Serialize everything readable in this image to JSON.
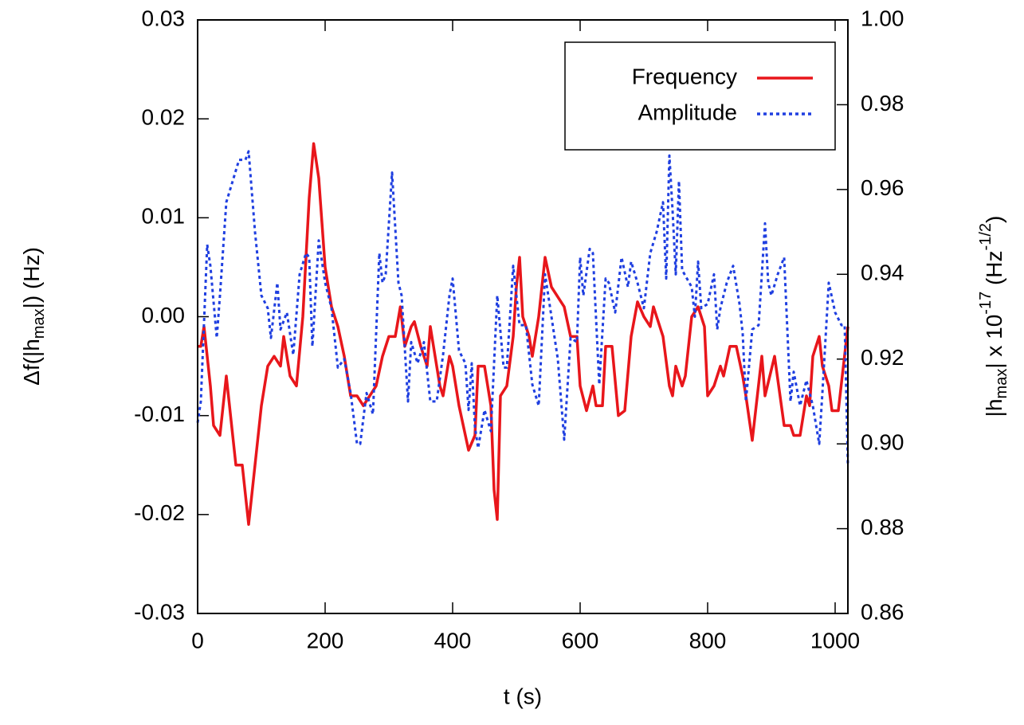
{
  "chart_data": {
    "type": "line",
    "xlabel": "t (s)",
    "ylabel": [
      "Δf(|h",
      "max",
      "|) (Hz)"
    ],
    "y2label": [
      "|h",
      "max",
      "| x 10",
      "-17",
      " (Hz",
      "-1/2",
      ")"
    ],
    "xlim": [
      0,
      1020
    ],
    "xticks": [
      0,
      200,
      400,
      600,
      800,
      1000
    ],
    "ylim": [
      -0.03,
      0.03
    ],
    "yticks": [
      -0.03,
      -0.02,
      -0.01,
      {
        "value": 0,
        "label": "0.00"
      },
      0.01,
      0.02,
      0.03
    ],
    "y2lim": [
      0.86,
      1.0
    ],
    "y2ticks": [
      0.86,
      0.88,
      {
        "value": 0.9,
        "label": "0.90"
      },
      0.92,
      0.94,
      0.96,
      0.98,
      {
        "value": 1.0,
        "label": "1.00"
      }
    ],
    "legend": "upper right",
    "series": [
      {
        "name": "Frequency",
        "color": "#e8161b",
        "linestyle": "solid",
        "x": [
          0,
          5,
          10,
          20,
          25,
          35,
          45,
          55,
          60,
          70,
          80,
          90,
          100,
          110,
          120,
          130,
          135,
          145,
          155,
          165,
          175,
          182,
          190,
          200,
          210,
          220,
          230,
          240,
          250,
          260,
          270,
          280,
          290,
          300,
          310,
          318,
          325,
          335,
          340,
          350,
          360,
          365,
          370,
          380,
          385,
          395,
          400,
          410,
          420,
          425,
          435,
          440,
          450,
          460,
          465,
          470,
          475,
          485,
          495,
          500,
          505,
          510,
          520,
          525,
          535,
          545,
          555,
          565,
          575,
          585,
          595,
          600,
          610,
          620,
          625,
          635,
          640,
          650,
          660,
          670,
          680,
          690,
          700,
          710,
          715,
          725,
          730,
          740,
          745,
          750,
          760,
          765,
          775,
          785,
          795,
          800,
          810,
          820,
          825,
          835,
          845,
          855,
          860,
          870,
          885,
          890,
          905,
          920,
          930,
          935,
          945,
          955,
          960,
          965,
          975,
          980,
          990,
          995,
          1005,
          1020
        ],
        "values": [
          -0.003,
          -0.003,
          -0.001,
          -0.007,
          -0.011,
          -0.012,
          -0.006,
          -0.012,
          -0.015,
          -0.015,
          -0.021,
          -0.015,
          -0.009,
          -0.005,
          -0.004,
          -0.005,
          -0.002,
          -0.006,
          -0.007,
          0.0,
          0.012,
          0.0175,
          0.014,
          0.005,
          0.001,
          -0.001,
          -0.004,
          -0.008,
          -0.008,
          -0.009,
          -0.008,
          -0.007,
          -0.004,
          -0.002,
          -0.002,
          0.001,
          -0.003,
          -0.001,
          -0.0005,
          -0.003,
          -0.005,
          -0.001,
          -0.003,
          -0.007,
          -0.008,
          -0.004,
          -0.005,
          -0.009,
          -0.012,
          -0.0135,
          -0.012,
          -0.005,
          -0.005,
          -0.009,
          -0.0175,
          -0.0205,
          -0.008,
          -0.007,
          -0.002,
          0.003,
          0.006,
          0.0,
          -0.002,
          -0.004,
          0.0,
          0.006,
          0.003,
          0.002,
          0.001,
          -0.002,
          -0.002,
          -0.007,
          -0.0095,
          -0.007,
          -0.009,
          -0.009,
          -0.003,
          -0.003,
          -0.01,
          -0.0095,
          -0.002,
          0.0015,
          0.0,
          -0.001,
          0.001,
          -0.001,
          -0.002,
          -0.007,
          -0.008,
          -0.005,
          -0.007,
          -0.006,
          0.0,
          0.001,
          -0.001,
          -0.008,
          -0.007,
          -0.005,
          -0.006,
          -0.003,
          -0.003,
          -0.006,
          -0.008,
          -0.0125,
          -0.004,
          -0.008,
          -0.004,
          -0.011,
          -0.011,
          -0.012,
          -0.012,
          -0.008,
          -0.009,
          -0.004,
          -0.002,
          -0.005,
          -0.007,
          -0.0095,
          -0.0095,
          -0.001
        ]
      },
      {
        "name": "Amplitude",
        "color": "#1f3fe0",
        "linestyle": "dotted",
        "axis": "y2",
        "x": [
          0,
          5,
          15,
          20,
          30,
          35,
          45,
          55,
          65,
          75,
          80,
          90,
          100,
          110,
          115,
          125,
          130,
          140,
          150,
          160,
          170,
          175,
          180,
          190,
          200,
          210,
          220,
          230,
          240,
          250,
          255,
          265,
          275,
          285,
          290,
          295,
          305,
          315,
          320,
          330,
          335,
          345,
          355,
          365,
          375,
          385,
          395,
          400,
          410,
          420,
          425,
          430,
          435,
          440,
          450,
          460,
          470,
          480,
          485,
          495,
          505,
          515,
          525,
          535,
          545,
          555,
          565,
          575,
          585,
          595,
          600,
          605,
          615,
          620,
          630,
          640,
          645,
          655,
          665,
          675,
          680,
          690,
          700,
          710,
          720,
          730,
          735,
          740,
          745,
          750,
          755,
          760,
          775,
          780,
          785,
          790,
          800,
          810,
          815,
          820,
          830,
          840,
          850,
          855,
          860,
          870,
          880,
          890,
          895,
          900,
          910,
          920,
          930,
          935,
          945,
          955,
          965,
          975,
          980,
          990,
          1000,
          1010,
          1015,
          1020
        ],
        "values": [
          0.905,
          0.91,
          0.947,
          0.942,
          0.925,
          0.935,
          0.957,
          0.962,
          0.967,
          0.967,
          0.969,
          0.95,
          0.935,
          0.932,
          0.925,
          0.938,
          0.927,
          0.931,
          0.921,
          0.94,
          0.945,
          0.944,
          0.923,
          0.948,
          0.938,
          0.932,
          0.918,
          0.92,
          0.912,
          0.9,
          0.9,
          0.912,
          0.907,
          0.945,
          0.938,
          0.94,
          0.964,
          0.938,
          0.935,
          0.91,
          0.924,
          0.919,
          0.924,
          0.91,
          0.91,
          0.921,
          0.935,
          0.939,
          0.922,
          0.919,
          0.908,
          0.919,
          0.904,
          0.899,
          0.908,
          0.903,
          0.935,
          0.918,
          0.918,
          0.942,
          0.928,
          0.928,
          0.914,
          0.909,
          0.94,
          0.93,
          0.92,
          0.901,
          0.925,
          0.924,
          0.944,
          0.935,
          0.946,
          0.945,
          0.914,
          0.939,
          0.938,
          0.931,
          0.944,
          0.937,
          0.943,
          0.938,
          0.932,
          0.945,
          0.95,
          0.957,
          0.939,
          0.968,
          0.955,
          0.94,
          0.962,
          0.941,
          0.937,
          0.93,
          0.943,
          0.932,
          0.933,
          0.94,
          0.927,
          0.932,
          0.938,
          0.942,
          0.933,
          0.926,
          0.91,
          0.927,
          0.928,
          0.952,
          0.938,
          0.935,
          0.94,
          0.944,
          0.91,
          0.917,
          0.909,
          0.915,
          0.909,
          0.9,
          0.912,
          0.938,
          0.931,
          0.928,
          0.928,
          0.895
        ]
      }
    ]
  }
}
